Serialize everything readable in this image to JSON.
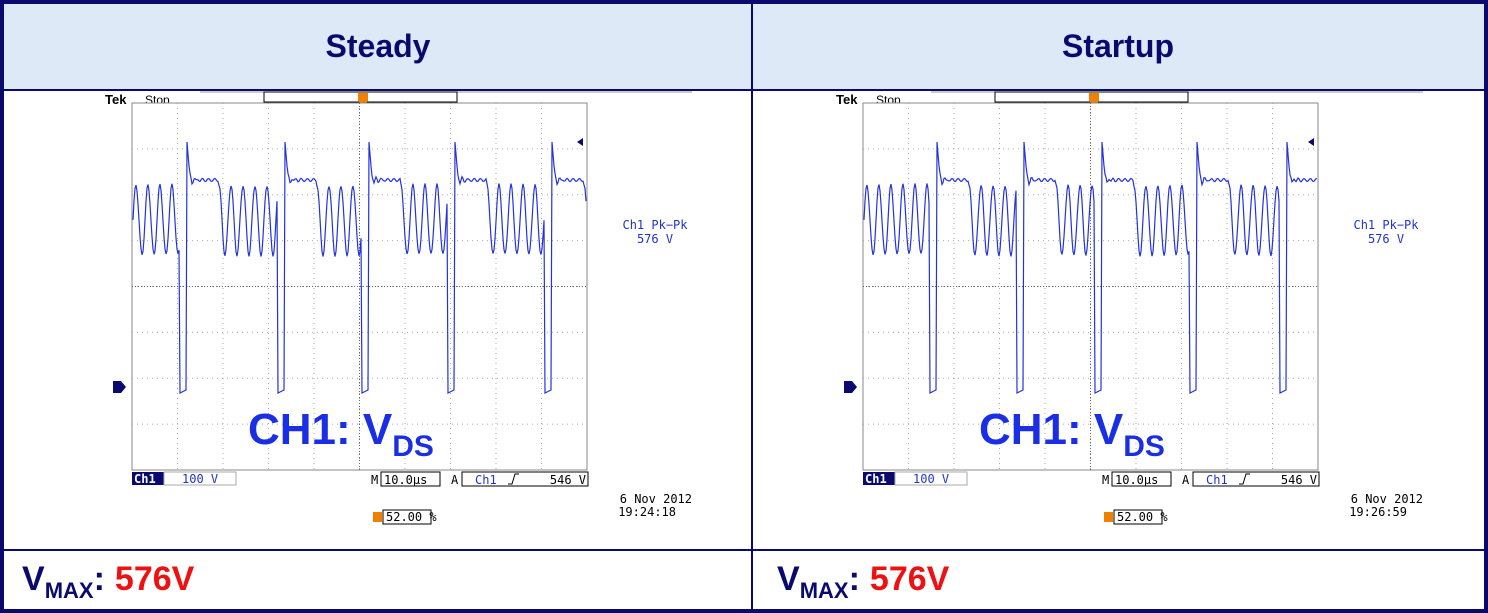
{
  "table": {
    "columns": [
      {
        "header": "Steady",
        "scope": {
          "brand": "Tek",
          "status": "Stop",
          "measurement": "Ch1 Pk−Pk",
          "measurement_value": "576 V",
          "channel_label": "CH1: V",
          "channel_label_sub": "DS",
          "channel": "Ch1",
          "volts_per_div": "100 V",
          "time_prefix": "M",
          "time_per_div": "10.0µs",
          "trigger_prefix": "A",
          "trigger_source": "Ch1",
          "trigger_level": "546 V",
          "date": "6 Nov 2012",
          "time": "19:24:18",
          "trigger_position": "52.00 %"
        },
        "footer": {
          "label": "V",
          "label_sub": "MAX",
          "separator": ":",
          "value": "576V"
        }
      },
      {
        "header": "Startup",
        "scope": {
          "brand": "Tek",
          "status": "Stop",
          "measurement": "Ch1 Pk−Pk",
          "measurement_value": "576 V",
          "channel_label": "CH1: V",
          "channel_label_sub": "DS",
          "channel": "Ch1",
          "volts_per_div": "100 V",
          "time_prefix": "M",
          "time_per_div": "10.0µs",
          "trigger_prefix": "A",
          "trigger_source": "Ch1",
          "trigger_level": "546 V",
          "date": "6 Nov 2012",
          "time": "19:26:59",
          "trigger_position": "52.00 %"
        },
        "footer": {
          "label": "V",
          "label_sub": "MAX",
          "separator": ":",
          "value": "576V"
        }
      }
    ]
  }
}
